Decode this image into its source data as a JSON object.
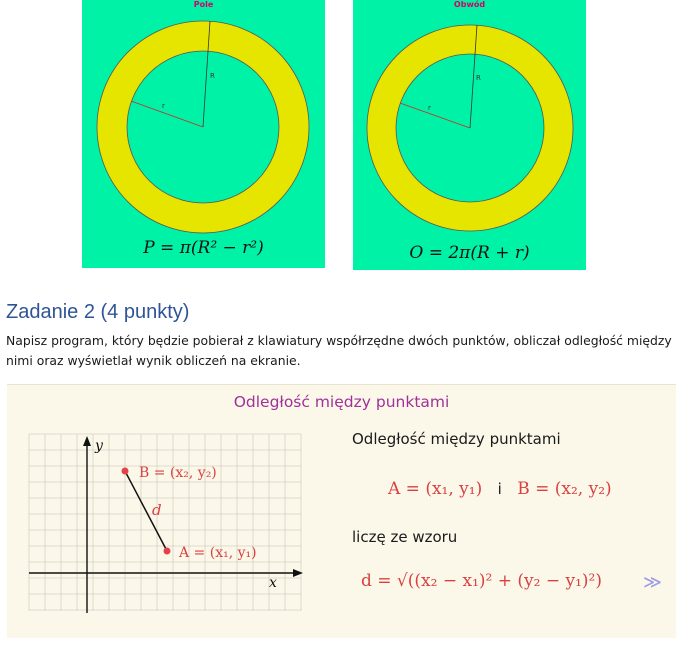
{
  "panels": {
    "area": {
      "title": "Pole",
      "label_R": "R",
      "label_r": "r",
      "formula": "P = π(R² − r²)"
    },
    "perimeter": {
      "title": "Obwód",
      "label_R": "R",
      "label_r": "r",
      "formula": "O = 2π(R + r)"
    }
  },
  "task": {
    "heading": "Zadanie 2 (4 punkty)",
    "text": "Napisz program, który będzie pobierał z klawiatury współrzędne dwóch punktów, obliczał odległość między nimi oraz wyświetlał wynik obliczeń na ekranie."
  },
  "slide": {
    "title": "Odległość między punktami",
    "intro": "Odległość między punktami",
    "point_a": "A = (x₁, y₁)",
    "connector": "i",
    "point_b": "B = (x₂, y₂)",
    "formula_intro": "liczę ze wzoru",
    "formula": "d = √((x₂ − x₁)² + (y₂ − y₁)²)",
    "next_symbol": "≫",
    "plot": {
      "axis_x": "x",
      "axis_y": "y",
      "label_d": "d",
      "label_a": "A = (x₁, y₁)",
      "label_b": "B = (x₂, y₂)"
    }
  },
  "colors": {
    "panel_bg": "#00f2a6",
    "ring": "#e5e500",
    "pink_title": "#d4006a",
    "heading_blue": "#2f5496",
    "slide_bg": "#fbf8ea",
    "slide_title": "#a0309a",
    "math_red": "#d94141"
  }
}
